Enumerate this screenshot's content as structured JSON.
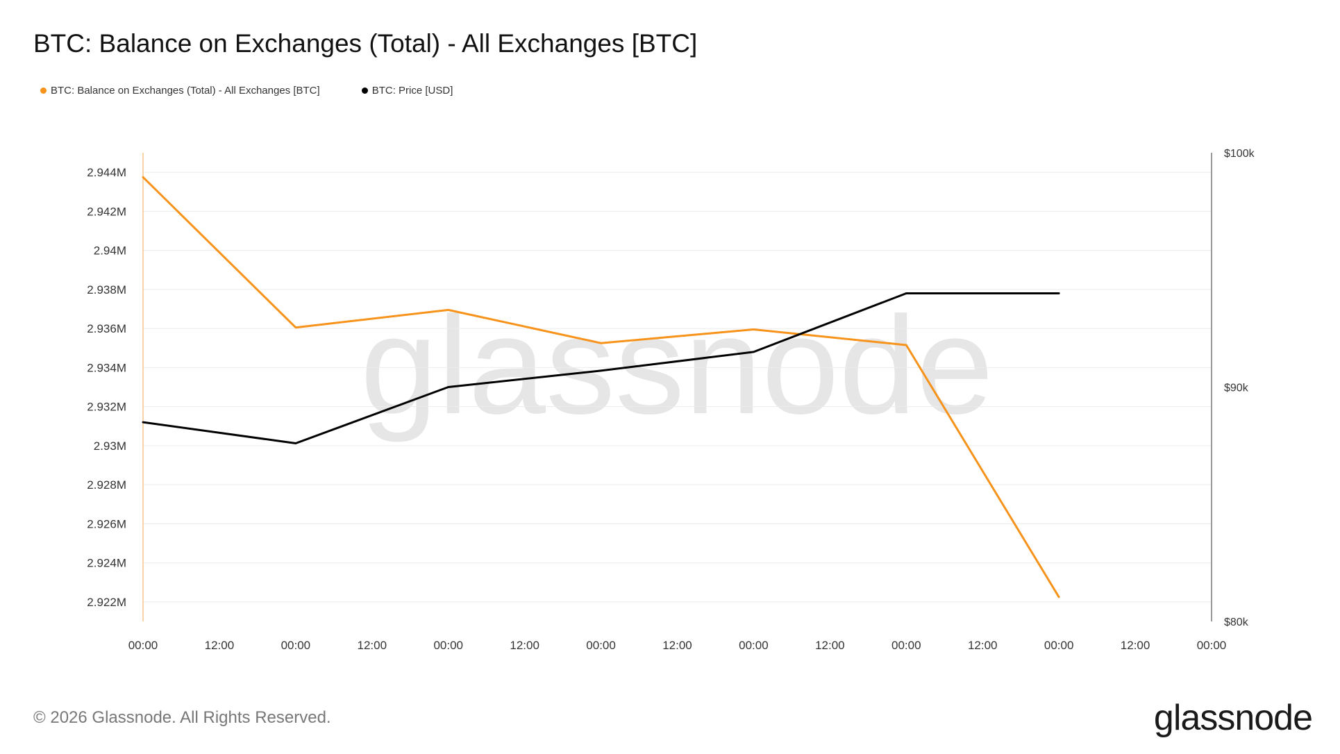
{
  "page": {
    "title": "BTC: Balance on Exchanges (Total) - All Exchanges [BTC]",
    "copyright": "© 2026 Glassnode. All Rights Reserved.",
    "logo_text": "glassnode",
    "watermark_text": "glassnode"
  },
  "legend": {
    "items": [
      {
        "label": "BTC: Balance on Exchanges (Total) - All Exchanges [BTC]",
        "color": "#f7931a"
      },
      {
        "label": "BTC: Price [USD]",
        "color": "#000000"
      }
    ]
  },
  "chart_data": {
    "type": "line",
    "x_tick_labels": [
      "00:00",
      "12:00",
      "00:00",
      "12:00",
      "00:00",
      "12:00",
      "00:00",
      "12:00",
      "00:00",
      "12:00",
      "00:00",
      "12:00",
      "00:00",
      "12:00",
      "00:00"
    ],
    "x_range_ticks": [
      0,
      14
    ],
    "left_axis": {
      "ticks": [
        2922000,
        2924000,
        2926000,
        2928000,
        2930000,
        2932000,
        2934000,
        2936000,
        2938000,
        2940000,
        2942000,
        2944000
      ],
      "tick_labels": [
        "2.922M",
        "2.924M",
        "2.926M",
        "2.928M",
        "2.93M",
        "2.932M",
        "2.934M",
        "2.936M",
        "2.938M",
        "2.94M",
        "2.942M",
        "2.944M"
      ],
      "range": [
        2921000,
        2945000
      ]
    },
    "right_axis": {
      "ticks": [
        80000,
        90000,
        100000
      ],
      "tick_labels": [
        "$80k",
        "$90k",
        "$100k"
      ],
      "range": [
        80000,
        100000
      ]
    },
    "grid": true,
    "legend_position": "top-left",
    "series": [
      {
        "name": "BTC: Balance on Exchanges (Total) - All Exchanges [BTC]",
        "axis": "left",
        "color": "#f7931a",
        "x": [
          0,
          2,
          4,
          6,
          8,
          10,
          12
        ],
        "values": [
          2943750,
          2936050,
          2936950,
          2935250,
          2935950,
          2935150,
          2922250
        ]
      },
      {
        "name": "BTC: Price [USD]",
        "axis": "right",
        "color": "#000000",
        "x": [
          0,
          2,
          4,
          6,
          8,
          10,
          12
        ],
        "values": [
          88500,
          87600,
          90000,
          90700,
          91500,
          94000,
          94000
        ]
      }
    ]
  }
}
